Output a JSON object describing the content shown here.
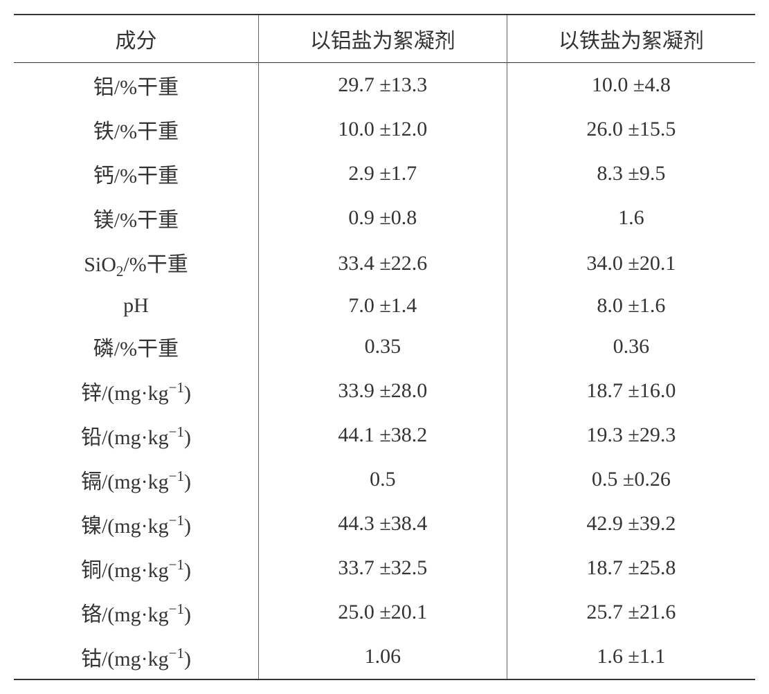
{
  "table": {
    "type": "table",
    "columns": [
      "成分",
      "以铝盐为絮凝剂",
      "以铁盐为絮凝剂"
    ],
    "column_widths": [
      "33%",
      "33.5%",
      "33.5%"
    ],
    "text_color": "#333333",
    "border_color": "#333333",
    "divider_color": "#666666",
    "background_color": "#ffffff",
    "header_border_top_width": 2.5,
    "header_border_bottom_width": 1.5,
    "footer_border_width": 2.5,
    "font_size": 30,
    "rows": [
      {
        "label_html": "铝/%干重",
        "label": "铝/%干重",
        "aluminum": "29.7 ±13.3",
        "iron": "10.0 ±4.8"
      },
      {
        "label_html": "铁/%干重",
        "label": "铁/%干重",
        "aluminum": "10.0 ±12.0",
        "iron": "26.0 ±15.5"
      },
      {
        "label_html": "钙/%干重",
        "label": "钙/%干重",
        "aluminum": "2.9 ±1.7",
        "iron": "8.3 ±9.5"
      },
      {
        "label_html": "镁/%干重",
        "label": "镁/%干重",
        "aluminum": "0.9 ±0.8",
        "iron": "1.6"
      },
      {
        "label_html": "<span class=\"compound\">SiO<sub>2</sub></span>/%<span class=\"chinese\">干重</span>",
        "label": "SiO2/%干重",
        "aluminum": "33.4 ±22.6",
        "iron": "34.0 ±20.1"
      },
      {
        "label_html": "<span class=\"compound\">pH</span>",
        "label": "pH",
        "aluminum": "7.0 ±1.4",
        "iron": "8.0 ±1.6"
      },
      {
        "label_html": "磷/%干重",
        "label": "磷/%干重",
        "aluminum": "0.35",
        "iron": "0.36"
      },
      {
        "label_html": "<span class=\"chinese\">锌</span>/(<span class=\"compound\">mg·kg<sup>−1</sup></span>)",
        "label": "锌/(mg·kg⁻¹)",
        "aluminum": "33.9 ±28.0",
        "iron": "18.7 ±16.0"
      },
      {
        "label_html": "<span class=\"chinese\">铅</span>/(<span class=\"compound\">mg·kg<sup>−1</sup></span>)",
        "label": "铅/(mg·kg⁻¹)",
        "aluminum": "44.1 ±38.2",
        "iron": "19.3 ±29.3"
      },
      {
        "label_html": "<span class=\"chinese\">镉</span>/(<span class=\"compound\">mg·kg<sup>−1</sup></span>)",
        "label": "镉/(mg·kg⁻¹)",
        "aluminum": "0.5",
        "iron": "0.5 ±0.26"
      },
      {
        "label_html": "<span class=\"chinese\">镍</span>/(<span class=\"compound\">mg·kg<sup>−1</sup></span>)",
        "label": "镍/(mg·kg⁻¹)",
        "aluminum": "44.3 ±38.4",
        "iron": "42.9 ±39.2"
      },
      {
        "label_html": "<span class=\"chinese\">铜</span>/(<span class=\"compound\">mg·kg<sup>−1</sup></span>)",
        "label": "铜/(mg·kg⁻¹)",
        "aluminum": "33.7 ±32.5",
        "iron": "18.7 ±25.8"
      },
      {
        "label_html": "<span class=\"chinese\">铬</span>/(<span class=\"compound\">mg·kg<sup>−1</sup></span>)",
        "label": "铬/(mg·kg⁻¹)",
        "aluminum": "25.0 ±20.1",
        "iron": "25.7 ±21.6"
      },
      {
        "label_html": "<span class=\"chinese\">钴</span>/(<span class=\"compound\">mg·kg<sup>−1</sup></span>)",
        "label": "钴/(mg·kg⁻¹)",
        "aluminum": "1.06",
        "iron": "1.6 ±1.1"
      }
    ]
  }
}
